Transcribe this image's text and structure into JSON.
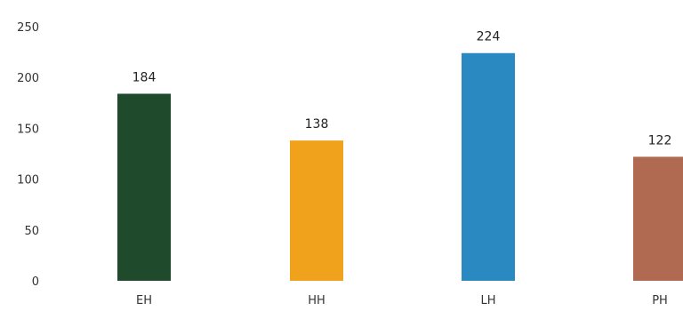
{
  "chart_data": {
    "type": "bar",
    "title": "",
    "xlabel": "",
    "ylabel": "",
    "categories": [
      "EH",
      "HH",
      "LH",
      "PH"
    ],
    "values": [
      184,
      138,
      224,
      122
    ],
    "data_labels": [
      "184",
      "138",
      "224",
      "122"
    ],
    "colors": [
      "#1f4a2c",
      "#f0a21c",
      "#2b89c2",
      "#b06a52"
    ],
    "ylim": [
      0,
      250
    ],
    "yticks": [
      0,
      50,
      100,
      150,
      200,
      250
    ],
    "ytick_labels": [
      "0",
      "50",
      "100",
      "150",
      "200",
      "250"
    ],
    "grid": false,
    "legend": "none"
  }
}
